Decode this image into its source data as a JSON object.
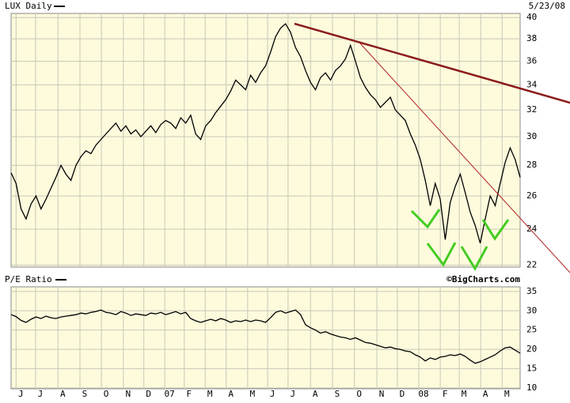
{
  "chart_data": [
    {
      "type": "line",
      "title": "LUX Daily",
      "subtitle": "5/23/08",
      "source": "©BigCharts.com",
      "log_y": true,
      "grid": true,
      "color": "#000000",
      "xlim": [
        0,
        102
      ],
      "ylim": [
        21.9,
        40.4
      ],
      "yticks": [
        22,
        24,
        26,
        28,
        30,
        32,
        34,
        36,
        38,
        40
      ],
      "x": [
        0,
        1,
        2,
        3,
        4,
        5,
        6,
        7,
        8,
        9,
        10,
        11,
        12,
        13,
        14,
        15,
        16,
        17,
        18,
        19,
        20,
        21,
        22,
        23,
        24,
        25,
        26,
        27,
        28,
        29,
        30,
        31,
        32,
        33,
        34,
        35,
        36,
        37,
        38,
        39,
        40,
        41,
        42,
        43,
        44,
        45,
        46,
        47,
        48,
        49,
        50,
        51,
        52,
        53,
        54,
        55,
        56,
        57,
        58,
        59,
        60,
        61,
        62,
        63,
        64,
        65,
        66,
        67,
        68,
        69,
        70,
        71,
        72,
        73,
        74,
        75,
        76,
        77,
        78,
        79,
        80,
        81,
        82,
        83,
        84,
        85,
        86,
        87,
        88,
        89,
        90,
        91,
        92,
        93,
        94,
        95,
        96,
        97,
        98,
        99,
        100,
        101,
        102
      ],
      "values": [
        27.5,
        26.8,
        25.2,
        24.6,
        25.5,
        26.0,
        25.2,
        25.8,
        26.5,
        27.2,
        28.0,
        27.4,
        27.0,
        28.0,
        28.6,
        29.0,
        28.8,
        29.4,
        29.8,
        30.2,
        30.6,
        31.0,
        30.4,
        30.8,
        30.2,
        30.5,
        30.0,
        30.4,
        30.8,
        30.3,
        30.9,
        31.2,
        31.0,
        30.6,
        31.4,
        31.0,
        31.6,
        30.2,
        29.8,
        30.8,
        31.2,
        31.8,
        32.3,
        32.8,
        33.5,
        34.4,
        34.0,
        33.6,
        34.8,
        34.2,
        35.0,
        35.6,
        36.8,
        38.2,
        39.0,
        39.4,
        38.6,
        37.2,
        36.4,
        35.2,
        34.2,
        33.6,
        34.6,
        35.0,
        34.4,
        35.2,
        35.6,
        36.2,
        37.4,
        36.0,
        34.6,
        33.8,
        33.2,
        32.8,
        32.2,
        32.6,
        33.0,
        32.0,
        31.6,
        31.2,
        30.2,
        29.4,
        28.4,
        27.0,
        25.4,
        26.8,
        25.8,
        23.4,
        25.6,
        26.6,
        27.4,
        26.2,
        25.0,
        24.2,
        23.2,
        24.6,
        26.0,
        25.4,
        26.8,
        28.2,
        29.2,
        28.4,
        27.2
      ]
    },
    {
      "type": "line",
      "title": "P/E Ratio",
      "log_y": false,
      "grid": true,
      "color": "#000000",
      "xlim": [
        0,
        102
      ],
      "ylim": [
        9.8,
        36.2
      ],
      "yticks": [
        10,
        15,
        20,
        25,
        30,
        35
      ],
      "xticks": [
        {
          "value": 1.0,
          "label": "J"
        },
        {
          "value": 4.9,
          "label": "J"
        },
        {
          "value": 9.4,
          "label": "A"
        },
        {
          "value": 13.8,
          "label": "S"
        },
        {
          "value": 18.1,
          "label": "O"
        },
        {
          "value": 22.5,
          "label": "N"
        },
        {
          "value": 26.6,
          "label": "D"
        },
        {
          "value": 30.8,
          "label": "07"
        },
        {
          "value": 34.7,
          "label": "F"
        },
        {
          "value": 38.9,
          "label": "M"
        },
        {
          "value": 43.1,
          "label": "A"
        },
        {
          "value": 47.4,
          "label": "M"
        },
        {
          "value": 51.4,
          "label": "J"
        },
        {
          "value": 55.5,
          "label": "J"
        },
        {
          "value": 60.0,
          "label": "A"
        },
        {
          "value": 64.4,
          "label": "S"
        },
        {
          "value": 68.8,
          "label": "O"
        },
        {
          "value": 73.3,
          "label": "N"
        },
        {
          "value": 77.4,
          "label": "D"
        },
        {
          "value": 81.7,
          "label": "08"
        },
        {
          "value": 86.0,
          "label": "F"
        },
        {
          "value": 89.8,
          "label": "M"
        },
        {
          "value": 94.1,
          "label": "A"
        },
        {
          "value": 98.4,
          "label": "M"
        }
      ],
      "x": [
        0,
        1,
        2,
        3,
        4,
        5,
        6,
        7,
        8,
        9,
        10,
        11,
        12,
        13,
        14,
        15,
        16,
        17,
        18,
        19,
        20,
        21,
        22,
        23,
        24,
        25,
        26,
        27,
        28,
        29,
        30,
        31,
        32,
        33,
        34,
        35,
        36,
        37,
        38,
        39,
        40,
        41,
        42,
        43,
        44,
        45,
        46,
        47,
        48,
        49,
        50,
        51,
        52,
        53,
        54,
        55,
        56,
        57,
        58,
        59,
        60,
        61,
        62,
        63,
        64,
        65,
        66,
        67,
        68,
        69,
        70,
        71,
        72,
        73,
        74,
        75,
        76,
        77,
        78,
        79,
        80,
        81,
        82,
        83,
        84,
        85,
        86,
        87,
        88,
        89,
        90,
        91,
        92,
        93,
        94,
        95,
        96,
        97,
        98,
        99,
        100,
        101,
        102
      ],
      "values": [
        29.0,
        28.5,
        27.5,
        27.0,
        27.8,
        28.4,
        28.0,
        28.6,
        28.2,
        28.0,
        28.4,
        28.6,
        28.8,
        29.0,
        29.4,
        29.2,
        29.6,
        29.8,
        30.2,
        29.6,
        29.4,
        29.0,
        29.8,
        29.4,
        28.8,
        29.2,
        29.0,
        28.8,
        29.4,
        29.2,
        29.6,
        29.0,
        29.4,
        29.8,
        29.2,
        29.6,
        28.0,
        27.4,
        27.0,
        27.4,
        27.8,
        27.4,
        28.0,
        27.6,
        27.0,
        27.4,
        27.2,
        27.6,
        27.2,
        27.6,
        27.4,
        27.0,
        28.2,
        29.6,
        30.0,
        29.4,
        29.8,
        30.2,
        29.0,
        26.4,
        25.6,
        25.0,
        24.2,
        24.6,
        24.0,
        23.6,
        23.2,
        23.0,
        22.6,
        23.0,
        22.4,
        21.8,
        21.6,
        21.2,
        20.8,
        20.4,
        20.6,
        20.2,
        20.0,
        19.6,
        19.4,
        18.6,
        18.0,
        17.0,
        17.8,
        17.4,
        18.0,
        18.2,
        18.6,
        18.4,
        18.8,
        18.2,
        17.2,
        16.4,
        16.8,
        17.4,
        18.0,
        18.6,
        19.6,
        20.4,
        20.6,
        19.8,
        19.0
      ]
    }
  ]
}
